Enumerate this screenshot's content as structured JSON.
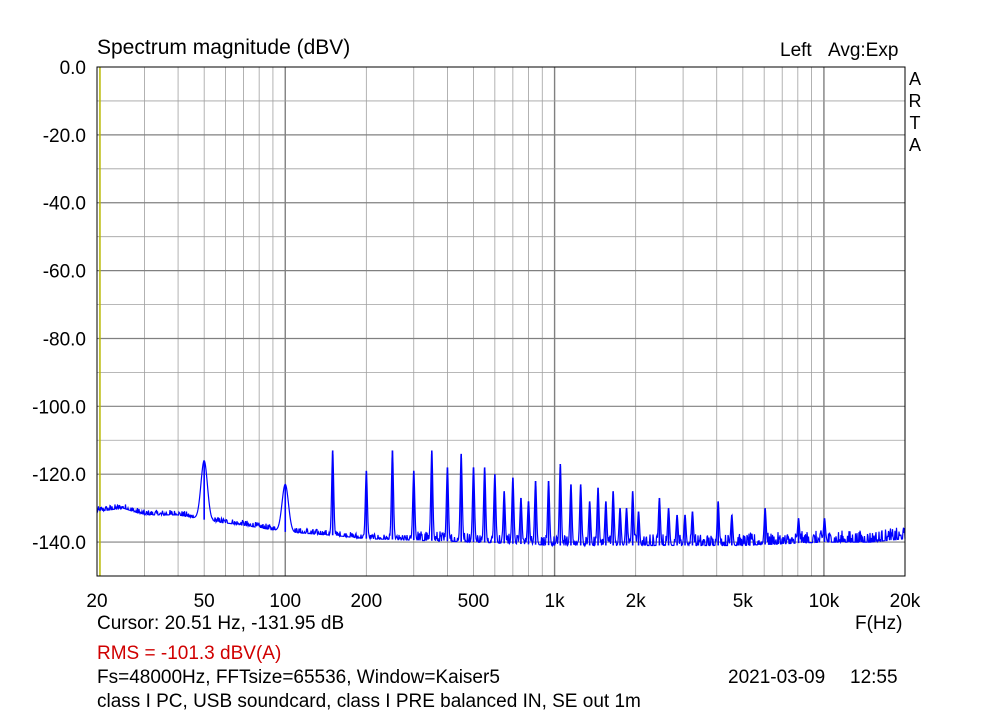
{
  "header": {
    "title": "Spectrum magnitude (dBV)",
    "channel": "Left",
    "averaging": "Avg:Exp",
    "brand": "ARTA"
  },
  "footer": {
    "x_unit": "F(Hz)",
    "cursor": "Cursor: 20.51 Hz, -131.95 dB",
    "rms": "RMS = -101.3 dBV(A)",
    "settings": "Fs=48000Hz, FFTsize=65536, Window=Kaiser5",
    "date": "2021-03-09",
    "time": "12:55",
    "description": "class I PC, USB soundcard, class I PRE balanced IN, SE out 1m"
  },
  "colors": {
    "trace": "#0000ff",
    "cursor": "#b8b800",
    "grid": "#a0a0a0",
    "rms_text": "#d00000"
  },
  "chart_data": {
    "type": "line",
    "title": "Spectrum magnitude (dBV)",
    "xlabel": "F(Hz)",
    "ylabel": "",
    "x_scale": "log",
    "xlim": [
      20,
      20000
    ],
    "ylim": [
      -150,
      0
    ],
    "grid": true,
    "x_ticks": [
      20,
      50,
      100,
      200,
      500,
      1000,
      2000,
      5000,
      10000,
      20000
    ],
    "x_tick_labels": [
      "20",
      "50",
      "100",
      "200",
      "500",
      "1k",
      "2k",
      "5k",
      "10k",
      "20k"
    ],
    "y_ticks": [
      0,
      -20,
      -40,
      -60,
      -80,
      -100,
      -120,
      -140
    ],
    "y_tick_labels": [
      "0.0",
      "-20.0",
      "-40.0",
      "-60.0",
      "-80.0",
      "-100.0",
      "-120.0",
      "-140.0"
    ],
    "cursor_x": 20.51,
    "noise_floor": [
      [
        20,
        -131
      ],
      [
        25,
        -130
      ],
      [
        30,
        -132
      ],
      [
        40,
        -132
      ],
      [
        55,
        -134
      ],
      [
        70,
        -135
      ],
      [
        100,
        -137
      ],
      [
        150,
        -138
      ],
      [
        200,
        -139
      ],
      [
        500,
        -140
      ],
      [
        1000,
        -141
      ],
      [
        2000,
        -141
      ],
      [
        5000,
        -141
      ],
      [
        10000,
        -140
      ],
      [
        15000,
        -140
      ],
      [
        20000,
        -139
      ]
    ],
    "series": [
      {
        "values": [
          {
            "x": 50,
            "y": -116
          },
          {
            "x": 100,
            "y": -123
          },
          {
            "x": 150,
            "y": -113
          },
          {
            "x": 200,
            "y": -119
          },
          {
            "x": 250,
            "y": -113
          },
          {
            "x": 300,
            "y": -119
          },
          {
            "x": 350,
            "y": -113
          },
          {
            "x": 400,
            "y": -118
          },
          {
            "x": 450,
            "y": -114
          },
          {
            "x": 500,
            "y": -118
          },
          {
            "x": 550,
            "y": -118
          },
          {
            "x": 600,
            "y": -120
          },
          {
            "x": 650,
            "y": -125
          },
          {
            "x": 700,
            "y": -121
          },
          {
            "x": 750,
            "y": -127
          },
          {
            "x": 800,
            "y": -128
          },
          {
            "x": 850,
            "y": -122
          },
          {
            "x": 950,
            "y": -122
          },
          {
            "x": 1050,
            "y": -117
          },
          {
            "x": 1150,
            "y": -123
          },
          {
            "x": 1250,
            "y": -123
          },
          {
            "x": 1350,
            "y": -128
          },
          {
            "x": 1450,
            "y": -124
          },
          {
            "x": 1550,
            "y": -128
          },
          {
            "x": 1650,
            "y": -125
          },
          {
            "x": 1750,
            "y": -130
          },
          {
            "x": 1850,
            "y": -130
          },
          {
            "x": 1950,
            "y": -125
          },
          {
            "x": 2050,
            "y": -131
          },
          {
            "x": 2450,
            "y": -127
          },
          {
            "x": 2650,
            "y": -130
          },
          {
            "x": 2850,
            "y": -132
          },
          {
            "x": 3050,
            "y": -132
          },
          {
            "x": 3250,
            "y": -131
          },
          {
            "x": 4050,
            "y": -128
          },
          {
            "x": 4550,
            "y": -132
          },
          {
            "x": 6050,
            "y": -130
          },
          {
            "x": 8050,
            "y": -133
          },
          {
            "x": 10050,
            "y": -133
          }
        ]
      }
    ]
  }
}
